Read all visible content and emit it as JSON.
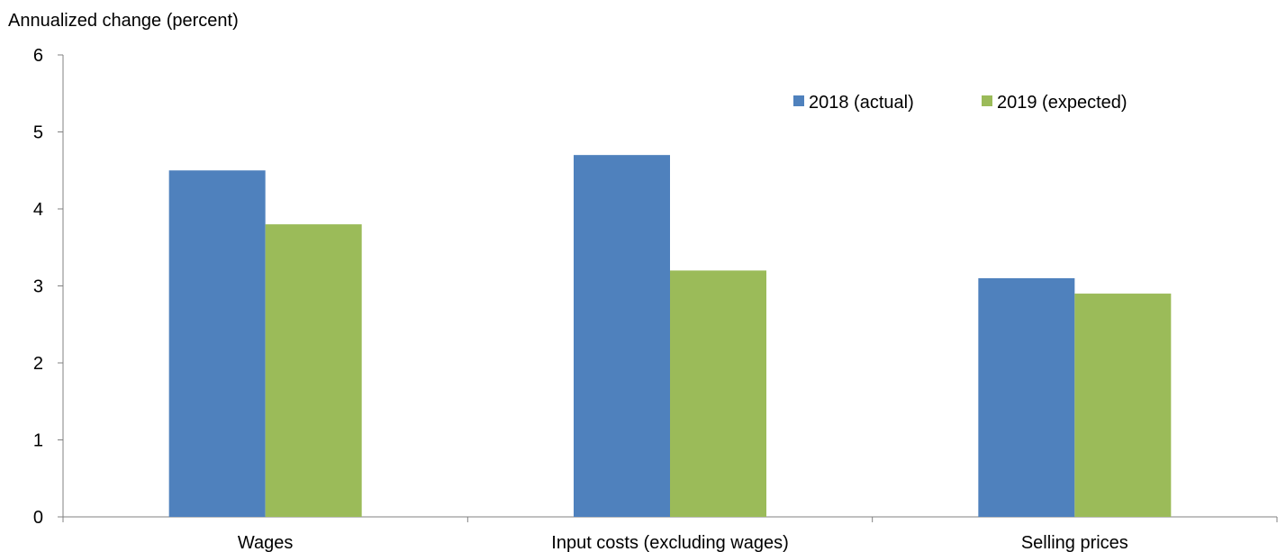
{
  "chart_data": {
    "type": "bar",
    "ylabel": "Annualized  change  (percent)",
    "categories": [
      "Wages",
      "Input costs (excluding wages)",
      "Selling prices"
    ],
    "series": [
      {
        "name": "2018 (actual)",
        "values": [
          4.5,
          4.7,
          3.1
        ],
        "color": "#4F81BD"
      },
      {
        "name": "2019 (expected)",
        "values": [
          3.8,
          3.2,
          2.9
        ],
        "color": "#9BBB59"
      }
    ],
    "ylim": [
      0,
      6
    ],
    "yticks": [
      0,
      1,
      2,
      3,
      4,
      5,
      6
    ],
    "grid": false,
    "legend_position": "top-right"
  }
}
